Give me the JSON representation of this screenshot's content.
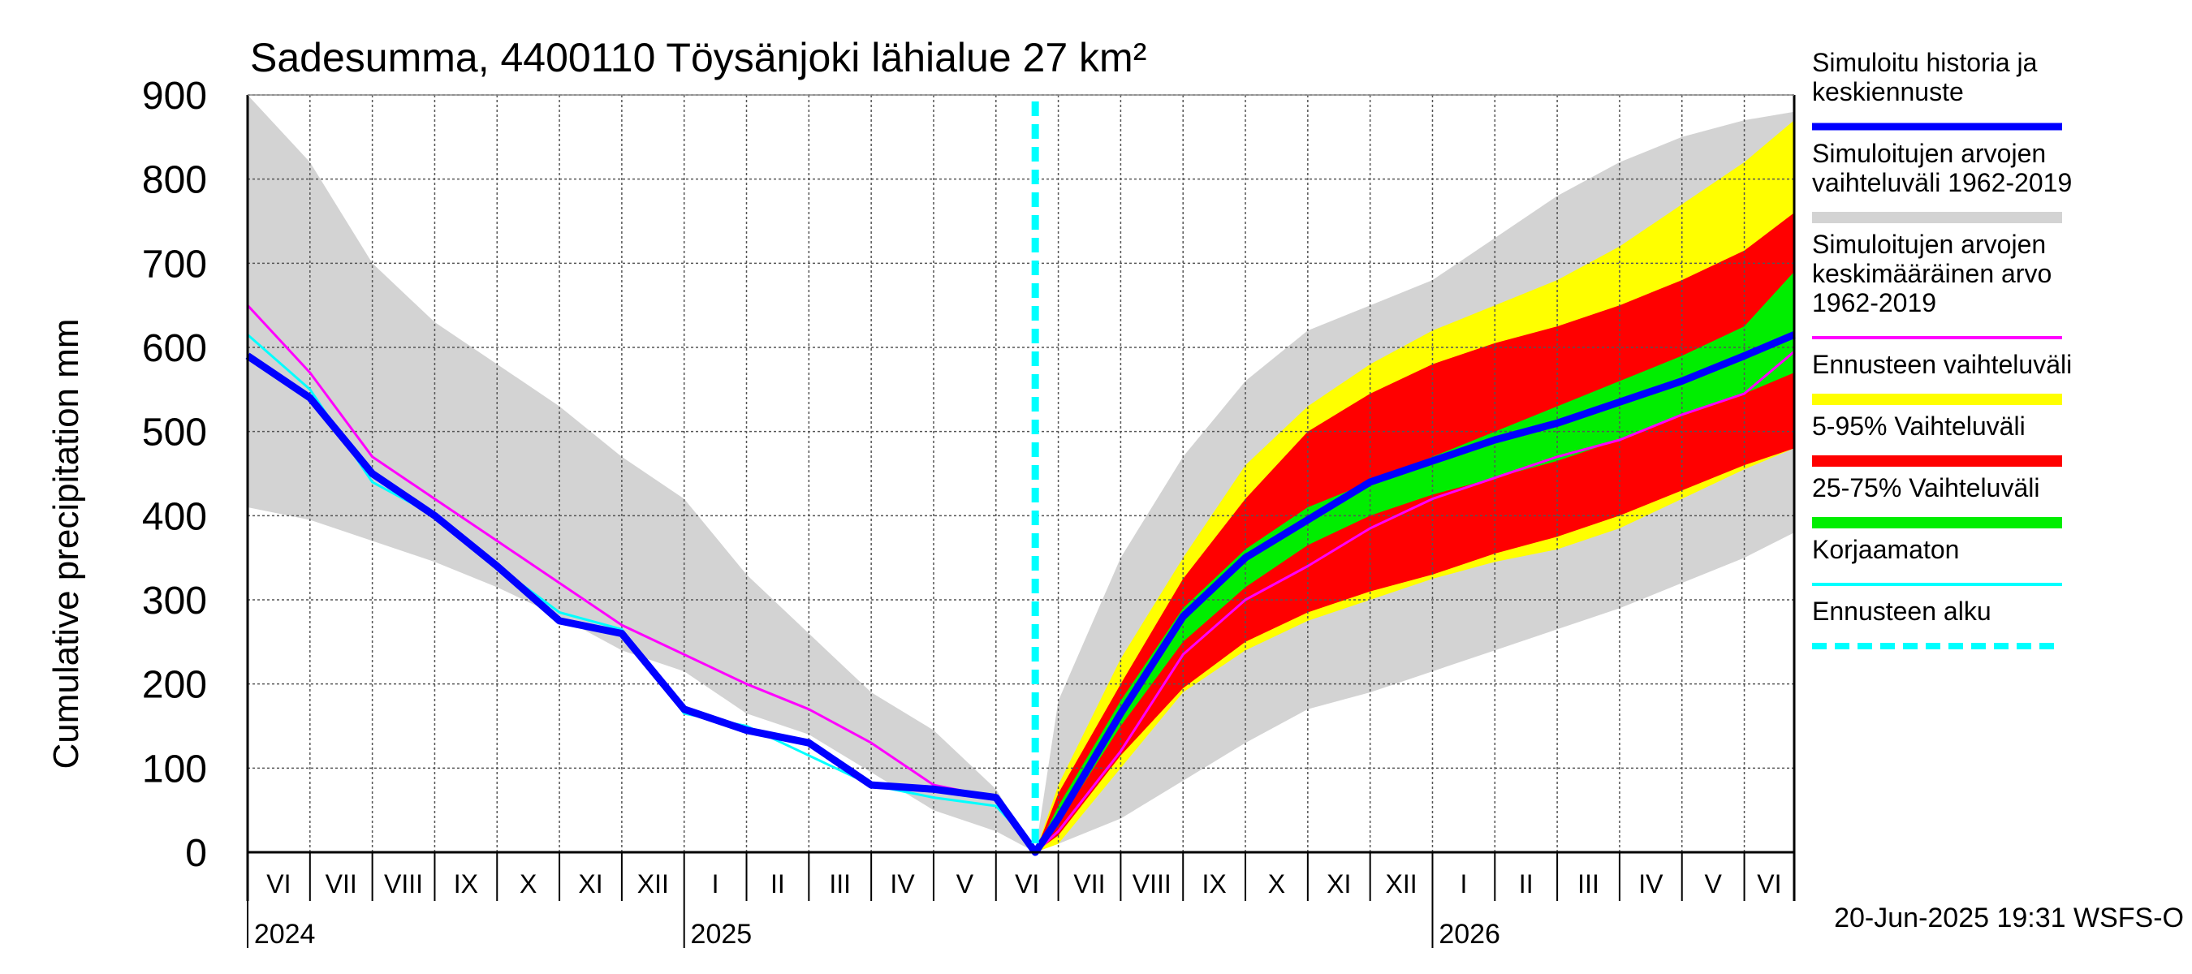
{
  "chart_data": {
    "type": "area",
    "title": "Sadesumma, 4400110 Töysänjoki lähialue 27 km²",
    "ylabel": "Cumulative precipitation   mm",
    "xlabel": "",
    "ylim": [
      0,
      900
    ],
    "yticks": [
      0,
      100,
      200,
      300,
      400,
      500,
      600,
      700,
      800,
      900
    ],
    "x_unit": "months since 2024-06-01",
    "xlim": [
      0,
      24.8
    ],
    "forecast_start": 12.63,
    "months": [
      "VI",
      "VII",
      "VIII",
      "IX",
      "X",
      "XI",
      "XII",
      "I",
      "II",
      "III",
      "IV",
      "V",
      "VI",
      "VII",
      "VIII",
      "IX",
      "X",
      "XI",
      "XII",
      "I",
      "II",
      "III",
      "IV",
      "V",
      "VI"
    ],
    "years": [
      {
        "label": "2024",
        "x": 0.05
      },
      {
        "label": "2025",
        "x": 7.05
      },
      {
        "label": "2026",
        "x": 19.05
      }
    ],
    "grid": true,
    "legend_position": "right",
    "timestamp": "20-Jun-2025 19:31 WSFS-O",
    "series": [
      {
        "name": "Simuloitujen arvojen vaihteluväli 1962-2019",
        "kind": "band",
        "color": "#d3d3d3",
        "x": [
          0,
          1,
          2,
          3,
          4,
          5,
          6,
          7,
          8,
          9,
          10,
          11,
          12,
          12.63,
          13,
          14,
          15,
          16,
          17,
          18,
          19,
          20,
          21,
          22,
          23,
          24,
          24.8
        ],
        "lower": [
          410,
          395,
          370,
          345,
          315,
          280,
          240,
          215,
          165,
          140,
          95,
          50,
          25,
          0,
          10,
          40,
          85,
          130,
          170,
          190,
          215,
          240,
          265,
          290,
          320,
          350,
          380
        ],
        "upper": [
          900,
          820,
          700,
          630,
          580,
          530,
          470,
          420,
          330,
          260,
          190,
          145,
          75,
          0,
          180,
          350,
          470,
          560,
          620,
          650,
          680,
          730,
          780,
          820,
          850,
          870,
          880
        ]
      },
      {
        "name": "Ennusteen vaihteluväli",
        "kind": "band",
        "color": "#ffff00",
        "x": [
          12.63,
          13,
          14,
          15,
          16,
          17,
          18,
          19,
          20,
          21,
          22,
          23,
          24,
          24.8
        ],
        "lower": [
          0,
          10,
          100,
          190,
          240,
          275,
          300,
          325,
          345,
          360,
          385,
          420,
          455,
          480
        ],
        "upper": [
          0,
          80,
          230,
          350,
          460,
          530,
          580,
          620,
          650,
          680,
          720,
          770,
          820,
          870
        ]
      },
      {
        "name": "5-95% Vaihteluväli",
        "kind": "band",
        "color": "#ff0000",
        "x": [
          12.63,
          13,
          14,
          15,
          16,
          17,
          18,
          19,
          20,
          21,
          22,
          23,
          24,
          24.8
        ],
        "lower": [
          0,
          20,
          115,
          195,
          250,
          285,
          310,
          330,
          355,
          375,
          400,
          430,
          460,
          480
        ],
        "upper": [
          0,
          70,
          200,
          325,
          420,
          500,
          545,
          580,
          605,
          625,
          650,
          680,
          715,
          760
        ]
      },
      {
        "name": "25-75% Vaihteluväli",
        "kind": "band",
        "color": "#00ee00",
        "x": [
          12.63,
          13,
          14,
          15,
          16,
          17,
          18,
          19,
          20,
          21,
          22,
          23,
          24,
          24.8
        ],
        "lower": [
          0,
          35,
          150,
          250,
          315,
          365,
          400,
          425,
          445,
          465,
          490,
          520,
          545,
          570
        ],
        "upper": [
          0,
          55,
          180,
          290,
          360,
          410,
          440,
          470,
          500,
          530,
          560,
          590,
          625,
          690
        ]
      },
      {
        "name": "Simuloitujen arvojen keskimääräinen arvo 1962-2019",
        "kind": "line",
        "color": "#ff00ff",
        "x": [
          0,
          1,
          2,
          3,
          4,
          5,
          6,
          7,
          8,
          9,
          10,
          11,
          12,
          12.63,
          13,
          14,
          15,
          16,
          17,
          18,
          19,
          20,
          21,
          22,
          23,
          24,
          24.8
        ],
        "values": [
          650,
          570,
          470,
          420,
          370,
          320,
          270,
          235,
          200,
          170,
          130,
          80,
          65,
          0,
          25,
          120,
          235,
          300,
          340,
          385,
          420,
          445,
          470,
          490,
          520,
          545,
          595
        ]
      },
      {
        "name": "Korjaamaton",
        "kind": "line",
        "color": "#00ffff",
        "x": [
          0,
          1,
          2,
          3,
          4,
          5,
          6,
          7,
          8,
          9,
          10,
          11,
          12,
          12.63
        ],
        "values": [
          615,
          550,
          440,
          400,
          340,
          285,
          265,
          165,
          150,
          115,
          80,
          65,
          55,
          5
        ]
      },
      {
        "name": "Simuloitu historia ja keskiennuste",
        "kind": "line",
        "color": "#0000ff",
        "x": [
          0,
          1,
          2,
          3,
          4,
          5,
          6,
          7,
          8,
          9,
          10,
          11,
          12,
          12.63,
          13,
          14,
          15,
          16,
          17,
          18,
          19,
          20,
          21,
          22,
          23,
          24,
          24.8
        ],
        "values": [
          590,
          540,
          450,
          400,
          340,
          275,
          260,
          170,
          145,
          130,
          80,
          75,
          65,
          0,
          40,
          165,
          280,
          350,
          395,
          440,
          465,
          490,
          510,
          535,
          560,
          590,
          615
        ]
      }
    ]
  },
  "legend": [
    {
      "lines": [
        "Simuloitu historia ja",
        "keskiennuste"
      ],
      "color": "#0000ff",
      "style": "solid",
      "swatch": "line"
    },
    {
      "lines": [
        "Simuloitujen arvojen",
        "vaihteluväli 1962-2019"
      ],
      "color": "#d3d3d3",
      "style": "solid",
      "swatch": "band"
    },
    {
      "lines": [
        "Simuloitujen arvojen",
        "keskimääräinen arvo",
        "   1962-2019"
      ],
      "color": "#ff00ff",
      "style": "solid",
      "swatch": "thin"
    },
    {
      "lines": [
        "Ennusteen vaihteluväli"
      ],
      "color": "#ffff00",
      "style": "solid",
      "swatch": "band"
    },
    {
      "lines": [
        "5-95% Vaihteluväli"
      ],
      "color": "#ff0000",
      "style": "solid",
      "swatch": "band"
    },
    {
      "lines": [
        "25-75% Vaihteluväli"
      ],
      "color": "#00ee00",
      "style": "solid",
      "swatch": "band"
    },
    {
      "lines": [
        "Korjaamaton"
      ],
      "color": "#00ffff",
      "style": "solid",
      "swatch": "thin"
    },
    {
      "lines": [
        "Ennusteen alku"
      ],
      "color": "#00ffff",
      "style": "dashed",
      "swatch": "dashed"
    }
  ]
}
